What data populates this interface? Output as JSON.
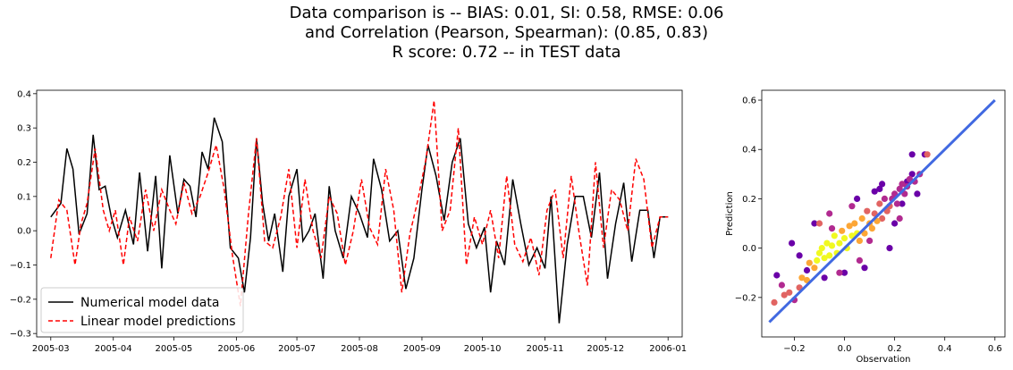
{
  "title": {
    "line1": "Data comparison is -- BIAS: 0.01, SI: 0.58, RMSE: 0.06",
    "line2": "and Correlation (Pearson, Spearman): (0.85, 0.83)",
    "line3": "R score: 0.72 -- in TEST data"
  },
  "colors": {
    "numerical": "#000000",
    "linear": "#ff0000",
    "fit_line": "#4169e1",
    "scatter_cmap": [
      "#0d0887",
      "#6a00a8",
      "#b12a90",
      "#e16462",
      "#fca636",
      "#f0f921"
    ]
  },
  "chart_data": [
    {
      "type": "line",
      "title": "",
      "xlabel": "",
      "ylabel": "",
      "x_ticks": [
        "2005-03",
        "2005-04",
        "2005-05",
        "2005-06",
        "2005-07",
        "2005-08",
        "2005-09",
        "2005-10",
        "2005-11",
        "2005-12",
        "2006-01"
      ],
      "y_ticks": [
        "0.4",
        "0.3",
        "0.2",
        "0.1",
        "0.0",
        "−0.1",
        "−0.2",
        "−0.3"
      ],
      "ylim": [
        -0.31,
        0.41
      ],
      "xlim": [
        "2005-02-22",
        "2006-01-08"
      ],
      "legend_position": "lower-left",
      "series": [
        {
          "name": "Numerical model data",
          "style": "solid",
          "x": [
            "2005-03-01",
            "2005-03-06",
            "2005-03-09",
            "2005-03-12",
            "2005-03-15",
            "2005-03-17",
            "2005-03-19",
            "2005-03-22",
            "2005-03-25",
            "2005-03-28",
            "2005-03-31",
            "2005-04-03",
            "2005-04-07",
            "2005-04-11",
            "2005-04-14",
            "2005-04-18",
            "2005-04-22",
            "2005-04-25",
            "2005-04-29",
            "2005-05-03",
            "2005-05-06",
            "2005-05-09",
            "2005-05-12",
            "2005-05-15",
            "2005-05-18",
            "2005-05-21",
            "2005-05-25",
            "2005-05-29",
            "2005-06-02",
            "2005-06-05",
            "2005-06-08",
            "2005-06-11",
            "2005-06-14",
            "2005-06-17",
            "2005-06-20",
            "2005-06-24",
            "2005-06-27",
            "2005-07-01",
            "2005-07-04",
            "2005-07-07",
            "2005-07-10",
            "2005-07-14",
            "2005-07-17",
            "2005-07-20",
            "2005-07-24",
            "2005-07-28",
            "2005-08-01",
            "2005-08-05",
            "2005-08-08",
            "2005-08-12",
            "2005-08-16",
            "2005-08-20",
            "2005-08-24",
            "2005-08-28",
            "2005-09-01",
            "2005-09-04",
            "2005-09-08",
            "2005-09-12",
            "2005-09-16",
            "2005-09-20",
            "2005-09-24",
            "2005-09-28",
            "2005-10-02",
            "2005-10-05",
            "2005-10-08",
            "2005-10-12",
            "2005-10-16",
            "2005-10-20",
            "2005-10-24",
            "2005-10-28",
            "2005-11-01",
            "2005-11-04",
            "2005-11-08",
            "2005-11-12",
            "2005-11-16",
            "2005-11-20",
            "2005-11-24",
            "2005-11-28",
            "2005-12-02",
            "2005-12-06",
            "2005-12-10",
            "2005-12-14",
            "2005-12-18",
            "2005-12-22",
            "2005-12-25",
            "2005-12-28",
            "2006-01-01"
          ],
          "values": [
            0.04,
            0.08,
            0.24,
            0.18,
            -0.01,
            0.02,
            0.05,
            0.28,
            0.12,
            0.13,
            0.04,
            -0.02,
            0.06,
            -0.04,
            0.17,
            -0.06,
            0.16,
            -0.11,
            0.22,
            0.05,
            0.15,
            0.13,
            0.04,
            0.23,
            0.18,
            0.33,
            0.26,
            -0.05,
            -0.08,
            -0.18,
            -0.02,
            0.27,
            0.08,
            -0.03,
            0.05,
            -0.12,
            0.1,
            0.18,
            -0.03,
            0.0,
            0.05,
            -0.14,
            0.13,
            0.0,
            -0.08,
            0.1,
            0.05,
            -0.02,
            0.21,
            0.12,
            -0.03,
            0.0,
            -0.17,
            -0.08,
            0.12,
            0.25,
            0.16,
            0.03,
            0.2,
            0.27,
            0.02,
            -0.05,
            0.01,
            -0.18,
            -0.03,
            -0.1,
            0.15,
            0.02,
            -0.1,
            -0.05,
            -0.11,
            0.1,
            -0.27,
            -0.04,
            0.1,
            0.1,
            -0.02,
            0.17,
            -0.14,
            0.02,
            0.14,
            -0.09,
            0.06,
            0.06,
            -0.08,
            0.04,
            0.04
          ]
        },
        {
          "name": "Linear model predictions",
          "style": "dashed",
          "x": [
            "2005-03-01",
            "2005-03-05",
            "2005-03-09",
            "2005-03-13",
            "2005-03-16",
            "2005-03-19",
            "2005-03-23",
            "2005-03-27",
            "2005-03-30",
            "2005-04-02",
            "2005-04-06",
            "2005-04-09",
            "2005-04-13",
            "2005-04-17",
            "2005-04-21",
            "2005-04-25",
            "2005-04-29",
            "2005-05-02",
            "2005-05-06",
            "2005-05-10",
            "2005-05-14",
            "2005-05-18",
            "2005-05-22",
            "2005-05-26",
            "2005-05-30",
            "2005-06-03",
            "2005-06-07",
            "2005-06-11",
            "2005-06-15",
            "2005-06-19",
            "2005-06-23",
            "2005-06-27",
            "2005-07-01",
            "2005-07-05",
            "2005-07-09",
            "2005-07-13",
            "2005-07-17",
            "2005-07-21",
            "2005-07-25",
            "2005-07-29",
            "2005-08-02",
            "2005-08-06",
            "2005-08-10",
            "2005-08-14",
            "2005-08-18",
            "2005-08-22",
            "2005-08-26",
            "2005-08-30",
            "2005-09-03",
            "2005-09-07",
            "2005-09-11",
            "2005-09-15",
            "2005-09-19",
            "2005-09-23",
            "2005-09-27",
            "2005-10-01",
            "2005-10-05",
            "2005-10-09",
            "2005-10-13",
            "2005-10-17",
            "2005-10-21",
            "2005-10-25",
            "2005-10-29",
            "2005-11-02",
            "2005-11-06",
            "2005-11-10",
            "2005-11-14",
            "2005-11-18",
            "2005-11-22",
            "2005-11-26",
            "2005-11-30",
            "2005-12-04",
            "2005-12-08",
            "2005-12-12",
            "2005-12-16",
            "2005-12-20",
            "2005-12-24",
            "2005-12-28",
            "2006-01-01"
          ],
          "values": [
            -0.08,
            0.09,
            0.06,
            -0.1,
            0.02,
            0.08,
            0.24,
            0.06,
            0.0,
            0.06,
            -0.1,
            0.04,
            -0.03,
            0.12,
            0.0,
            0.12,
            0.06,
            0.02,
            0.14,
            0.05,
            0.1,
            0.17,
            0.25,
            0.12,
            -0.07,
            -0.22,
            0.05,
            0.27,
            -0.03,
            -0.05,
            0.04,
            0.18,
            -0.05,
            0.15,
            0.0,
            -0.08,
            0.1,
            0.05,
            -0.1,
            0.0,
            0.15,
            0.01,
            -0.04,
            0.18,
            0.06,
            -0.18,
            -0.01,
            0.09,
            0.21,
            0.38,
            0.0,
            0.06,
            0.3,
            -0.1,
            0.04,
            -0.04,
            0.06,
            -0.08,
            0.16,
            -0.04,
            -0.09,
            -0.02,
            -0.13,
            0.06,
            0.12,
            -0.08,
            0.16,
            -0.01,
            -0.16,
            0.2,
            -0.05,
            0.12,
            0.09,
            0.0,
            0.21,
            0.15,
            -0.05,
            0.04,
            0.04
          ]
        }
      ]
    },
    {
      "type": "scatter",
      "title": "",
      "xlabel": "Observation",
      "ylabel": "Prediction",
      "x_ticks": [
        "−0.2",
        "0.0",
        "0.2",
        "0.4",
        "0.6"
      ],
      "y_ticks": [
        "0.6",
        "0.4",
        "0.2",
        "0.0",
        "−0.2"
      ],
      "xlim": [
        -0.33,
        0.64
      ],
      "ylim": [
        -0.36,
        0.64
      ],
      "fit_line": {
        "x": [
          -0.3,
          0.6
        ],
        "y": [
          -0.3,
          0.6
        ]
      },
      "points_description": "dense cloud along diagonal colored by density (plasma colormap)",
      "points": {
        "x": [
          -0.28,
          -0.27,
          -0.25,
          -0.24,
          -0.22,
          -0.2,
          -0.18,
          -0.17,
          -0.15,
          -0.14,
          -0.12,
          -0.11,
          -0.1,
          -0.09,
          -0.08,
          -0.07,
          -0.06,
          -0.05,
          -0.04,
          -0.03,
          -0.02,
          -0.01,
          0.0,
          0.01,
          0.02,
          0.03,
          0.04,
          0.05,
          0.06,
          0.07,
          0.08,
          0.09,
          0.1,
          0.11,
          0.12,
          0.13,
          0.14,
          0.15,
          0.16,
          0.17,
          0.18,
          0.19,
          0.2,
          0.21,
          0.22,
          0.23,
          0.24,
          0.25,
          0.26,
          0.27,
          0.28,
          0.29,
          0.3,
          0.32,
          0.33,
          -0.21,
          -0.15,
          -0.12,
          -0.08,
          -0.05,
          0.0,
          0.05,
          0.08,
          0.12,
          0.18,
          0.22,
          0.25,
          -0.1,
          -0.02,
          0.03,
          0.1,
          0.15,
          0.2,
          -0.18,
          -0.06,
          0.06,
          0.14,
          0.27,
          0.23
        ],
        "y": [
          -0.22,
          -0.11,
          -0.15,
          -0.19,
          -0.18,
          -0.21,
          -0.16,
          -0.12,
          -0.13,
          -0.06,
          -0.08,
          -0.05,
          -0.02,
          0.0,
          -0.04,
          0.02,
          -0.03,
          0.01,
          0.05,
          -0.02,
          0.02,
          0.07,
          0.04,
          0.0,
          0.09,
          0.05,
          0.1,
          0.06,
          0.03,
          0.12,
          0.06,
          0.15,
          0.1,
          0.08,
          0.14,
          0.11,
          0.18,
          0.12,
          0.2,
          0.15,
          0.17,
          0.2,
          0.22,
          0.18,
          0.24,
          0.26,
          0.22,
          0.25,
          0.28,
          0.3,
          0.27,
          0.22,
          0.3,
          0.38,
          0.38,
          0.02,
          -0.09,
          0.1,
          -0.12,
          0.08,
          -0.1,
          0.2,
          -0.08,
          0.23,
          0.0,
          0.12,
          0.27,
          0.1,
          -0.1,
          0.17,
          0.03,
          0.26,
          0.1,
          -0.03,
          0.14,
          -0.05,
          0.24,
          0.38,
          0.18
        ],
        "density": [
          0.5,
          0.1,
          0.3,
          0.6,
          0.5,
          0.4,
          0.6,
          0.7,
          0.7,
          0.8,
          0.8,
          0.9,
          0.9,
          1.0,
          0.9,
          1.0,
          0.95,
          1.0,
          0.9,
          1.0,
          1.0,
          0.85,
          1.0,
          0.95,
          0.8,
          1.0,
          0.8,
          0.95,
          0.8,
          0.7,
          0.85,
          0.6,
          0.8,
          0.75,
          0.6,
          0.7,
          0.5,
          0.65,
          0.4,
          0.55,
          0.5,
          0.45,
          0.4,
          0.45,
          0.35,
          0.3,
          0.4,
          0.35,
          0.3,
          0.25,
          0.3,
          0.1,
          0.3,
          0.1,
          0.55,
          0.15,
          0.2,
          0.15,
          0.2,
          0.3,
          0.2,
          0.25,
          0.15,
          0.25,
          0.2,
          0.4,
          0.2,
          0.5,
          0.3,
          0.4,
          0.3,
          0.2,
          0.1,
          0.15,
          0.35,
          0.3,
          0.15,
          0.1,
          0.25
        ]
      }
    }
  ]
}
